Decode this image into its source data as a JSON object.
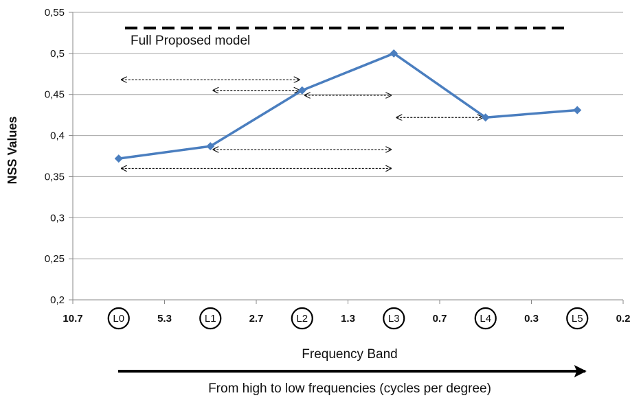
{
  "chart_data": {
    "type": "line",
    "ylabel": "NSS Values",
    "xlabel": "Frequency Band",
    "subcaption": "From high to low frequencies (cycles per degree)",
    "ylim": [
      0.2,
      0.55
    ],
    "yticks": [
      0.2,
      0.25,
      0.3,
      0.35,
      0.4,
      0.45,
      0.5,
      0.55
    ],
    "ytick_labels": [
      "0,2",
      "0,25",
      "0,3",
      "0,35",
      "0,4",
      "0,45",
      "0,5",
      "0,55"
    ],
    "grid": true,
    "edge_ticks": [
      "10.7",
      "5.3",
      "2.7",
      "1.3",
      "0.7",
      "0.3",
      "0.2"
    ],
    "categories": [
      "L0",
      "L1",
      "L2",
      "L3",
      "L4",
      "L5"
    ],
    "series": [
      {
        "values": [
          0.372,
          0.387,
          0.455,
          0.5,
          0.422,
          0.431
        ],
        "color": "#4a7ebf"
      }
    ],
    "reference_line": {
      "label": "Full Proposed model",
      "value": 0.531,
      "style": "dashed",
      "color": "#000000"
    },
    "comparison_arrows": [
      {
        "from": "L0",
        "to": "L2",
        "y": 0.468
      },
      {
        "from": "L1",
        "to": "L2",
        "y": 0.455
      },
      {
        "from": "L2",
        "to": "L3",
        "y": 0.449
      },
      {
        "from": "L3",
        "to": "L4",
        "y": 0.422
      },
      {
        "from": "L1",
        "to": "L3",
        "y": 0.383
      },
      {
        "from": "L0",
        "to": "L3",
        "y": 0.36
      }
    ]
  }
}
